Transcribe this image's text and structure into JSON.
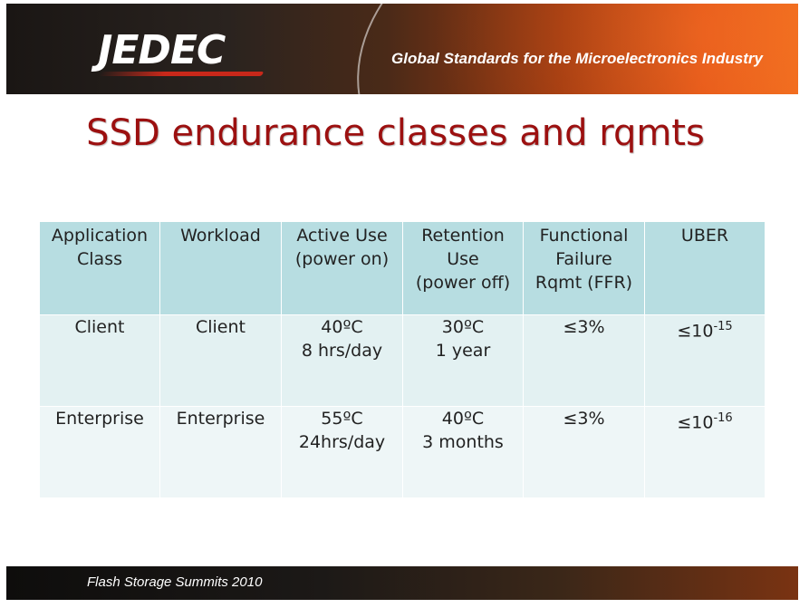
{
  "header": {
    "logo_text": "JEDEC",
    "tagline": "Global Standards for the Microelectronics Industry"
  },
  "title": "SSD endurance classes and rqmts",
  "table": {
    "headers": [
      [
        "Application",
        "Class"
      ],
      [
        "Workload"
      ],
      [
        "Active Use",
        "(power on)"
      ],
      [
        "Retention",
        "Use",
        "(power off)"
      ],
      [
        "Functional",
        "Failure",
        "Rqmt (FFR)"
      ],
      [
        "UBER"
      ]
    ],
    "rows": [
      {
        "application_class": "Client",
        "workload": "Client",
        "active_use": [
          "40ºC",
          "8 hrs/day"
        ],
        "retention_use": [
          "30ºC",
          "1 year"
        ],
        "ffr": "≤3%",
        "uber_base": "≤10",
        "uber_exp": "-15"
      },
      {
        "application_class": "Enterprise",
        "workload": "Enterprise",
        "active_use": [
          "55ºC",
          "24hrs/day"
        ],
        "retention_use": [
          "40ºC",
          "3 months"
        ],
        "ffr": "≤3%",
        "uber_base": "≤10",
        "uber_exp": "-16"
      }
    ]
  },
  "footer": {
    "text": "Flash Storage Summits 2010"
  },
  "colors": {
    "title": "#9c1010",
    "table_header_bg": "#b7dde1",
    "table_body_bg": "#e3f1f2"
  }
}
